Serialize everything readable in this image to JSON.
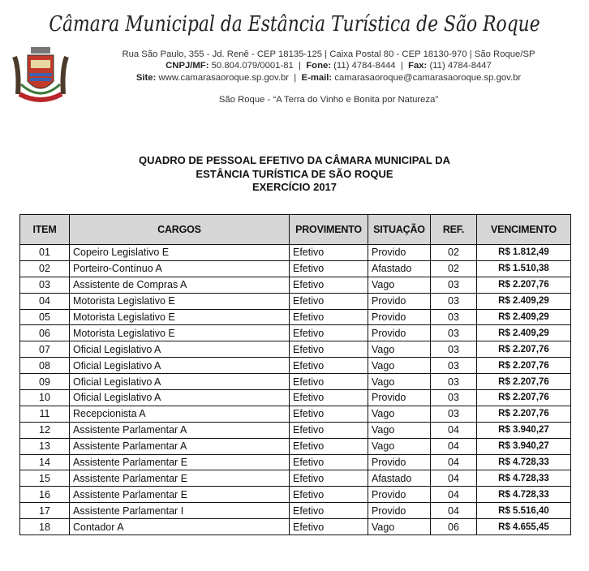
{
  "letterhead": {
    "institution": "Câmara Municipal da Estância Turística de São Roque",
    "address_line": "Rua São Paulo, 355 - Jd. Renê - CEP 18135-125  |  Caixa Postal 80 - CEP 18130-970  |  São Roque/SP",
    "cnpj_label": "CNPJ/MF:",
    "cnpj": "50.804.079/0001-81",
    "fone_label": "Fone:",
    "fone": "(11) 4784-8444",
    "fax_label": "Fax:",
    "fax": "(11) 4784-8447",
    "site_label": "Site:",
    "site": "www.camarasaoroque.sp.gov.br",
    "email_label": "E-mail:",
    "email": "camarasaoroque@camarasaoroque.sp.gov.br",
    "slogan": "São Roque - “A Terra do Vinho e Bonita por Natureza”"
  },
  "title": {
    "line1": "QUADRO DE PESSOAL EFETIVO DA CÂMARA MUNICIPAL DA",
    "line2": "ESTÂNCIA TURÍSTICA DE SÃO ROQUE",
    "line3": "EXERCÍCIO 2017"
  },
  "table": {
    "headers": [
      "ITEM",
      "CARGOS",
      "PROVIMENTO",
      "SITUAÇÃO",
      "REF.",
      "VENCIMENTO"
    ],
    "rows": [
      [
        "01",
        "Copeiro Legislativo E",
        "Efetivo",
        "Provido",
        "02",
        "R$ 1.812,49"
      ],
      [
        "02",
        "Porteiro-Contínuo A",
        "Efetivo",
        "Afastado",
        "02",
        "R$ 1.510,38"
      ],
      [
        "03",
        "Assistente de Compras A",
        "Efetivo",
        "Vago",
        "03",
        "R$ 2.207,76"
      ],
      [
        "04",
        "Motorista Legislativo E",
        "Efetivo",
        "Provido",
        "03",
        "R$ 2.409,29"
      ],
      [
        "05",
        "Motorista Legislativo E",
        "Efetivo",
        "Provido",
        "03",
        "R$ 2.409,29"
      ],
      [
        "06",
        "Motorista Legislativo E",
        "Efetivo",
        "Provido",
        "03",
        "R$ 2.409,29"
      ],
      [
        "07",
        "Oficial Legislativo A",
        "Efetivo",
        "Vago",
        "03",
        "R$ 2.207,76"
      ],
      [
        "08",
        "Oficial Legislativo A",
        "Efetivo",
        "Vago",
        "03",
        "R$ 2.207,76"
      ],
      [
        "09",
        "Oficial Legislativo A",
        "Efetivo",
        "Vago",
        "03",
        "R$ 2.207,76"
      ],
      [
        "10",
        "Oficial Legislativo A",
        "Efetivo",
        "Provido",
        "03",
        "R$ 2.207,76"
      ],
      [
        "11",
        "Recepcionista A",
        "Efetivo",
        "Vago",
        "03",
        "R$ 2.207,76"
      ],
      [
        "12",
        "Assistente Parlamentar A",
        "Efetivo",
        "Vago",
        "04",
        "R$ 3.940,27"
      ],
      [
        "13",
        "Assistente Parlamentar A",
        "Efetivo",
        "Vago",
        "04",
        "R$ 3.940,27"
      ],
      [
        "14",
        "Assistente Parlamentar E",
        "Efetivo",
        "Provido",
        "04",
        "R$ 4.728,33"
      ],
      [
        "15",
        "Assistente Parlamentar E",
        "Efetivo",
        "Afastado",
        "04",
        "R$ 4.728,33"
      ],
      [
        "16",
        "Assistente Parlamentar E",
        "Efetivo",
        "Provido",
        "04",
        "R$ 4.728,33"
      ],
      [
        "17",
        "Assistente Parlamentar I",
        "Efetivo",
        "Provido",
        "04",
        "R$ 5.516,40"
      ],
      [
        "18",
        "Contador A",
        "Efetivo",
        "Vago",
        "06",
        "R$ 4.655,45"
      ]
    ]
  }
}
